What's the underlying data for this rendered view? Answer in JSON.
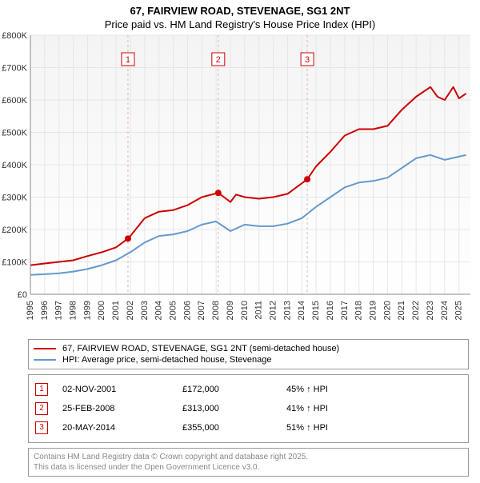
{
  "title_line1": "67, FAIRVIEW ROAD, STEVENAGE, SG1 2NT",
  "title_line2": "Price paid vs. HM Land Registry's House Price Index (HPI)",
  "chart": {
    "type": "line",
    "background_color": "#ffffff",
    "plot_background": "linear-gradient(#f7f7f7,#ffffff)",
    "xlim": [
      1995,
      2025.8
    ],
    "ylim": [
      0,
      800000
    ],
    "ytick_step": 100000,
    "yticks": [
      "£0",
      "£100K",
      "£200K",
      "£300K",
      "£400K",
      "£500K",
      "£600K",
      "£700K",
      "£800K"
    ],
    "xticks": [
      1995,
      1996,
      1997,
      1998,
      1999,
      2000,
      2001,
      2002,
      2003,
      2004,
      2005,
      2006,
      2007,
      2008,
      2009,
      2010,
      2011,
      2012,
      2013,
      2014,
      2015,
      2016,
      2017,
      2018,
      2019,
      2020,
      2021,
      2022,
      2023,
      2024,
      2025
    ],
    "grid_color": "#e6e6e6",
    "axis_color": "#888888",
    "axis_fontsize": 11,
    "series": [
      {
        "name": "67, FAIRVIEW ROAD, STEVENAGE, SG1 2NT (semi-detached house)",
        "color": "#cc0000",
        "line_width": 2,
        "data": [
          [
            1995,
            90000
          ],
          [
            1996,
            95000
          ],
          [
            1997,
            100000
          ],
          [
            1998,
            105000
          ],
          [
            1999,
            118000
          ],
          [
            2000,
            130000
          ],
          [
            2001,
            145000
          ],
          [
            2001.83,
            172000
          ],
          [
            2002,
            180000
          ],
          [
            2003,
            235000
          ],
          [
            2004,
            255000
          ],
          [
            2005,
            260000
          ],
          [
            2006,
            275000
          ],
          [
            2007,
            300000
          ],
          [
            2008.15,
            313000
          ],
          [
            2008.7,
            295000
          ],
          [
            2009,
            285000
          ],
          [
            2009.4,
            308000
          ],
          [
            2010,
            300000
          ],
          [
            2011,
            295000
          ],
          [
            2012,
            300000
          ],
          [
            2013,
            310000
          ],
          [
            2014.38,
            355000
          ],
          [
            2015,
            395000
          ],
          [
            2016,
            440000
          ],
          [
            2017,
            490000
          ],
          [
            2018,
            510000
          ],
          [
            2019,
            510000
          ],
          [
            2020,
            520000
          ],
          [
            2021,
            570000
          ],
          [
            2022,
            610000
          ],
          [
            2023,
            640000
          ],
          [
            2023.5,
            610000
          ],
          [
            2024,
            600000
          ],
          [
            2024.6,
            640000
          ],
          [
            2025,
            605000
          ],
          [
            2025.5,
            620000
          ]
        ]
      },
      {
        "name": "HPI: Average price, semi-detached house, Stevenage",
        "color": "#6699cc",
        "line_width": 2,
        "data": [
          [
            1995,
            60000
          ],
          [
            1996,
            62000
          ],
          [
            1997,
            65000
          ],
          [
            1998,
            70000
          ],
          [
            1999,
            78000
          ],
          [
            2000,
            90000
          ],
          [
            2001,
            105000
          ],
          [
            2002,
            130000
          ],
          [
            2003,
            160000
          ],
          [
            2004,
            180000
          ],
          [
            2005,
            185000
          ],
          [
            2006,
            195000
          ],
          [
            2007,
            215000
          ],
          [
            2008,
            225000
          ],
          [
            2009,
            195000
          ],
          [
            2010,
            215000
          ],
          [
            2011,
            210000
          ],
          [
            2012,
            210000
          ],
          [
            2013,
            218000
          ],
          [
            2014,
            235000
          ],
          [
            2015,
            270000
          ],
          [
            2016,
            300000
          ],
          [
            2017,
            330000
          ],
          [
            2018,
            345000
          ],
          [
            2019,
            350000
          ],
          [
            2020,
            360000
          ],
          [
            2021,
            390000
          ],
          [
            2022,
            420000
          ],
          [
            2023,
            430000
          ],
          [
            2024,
            415000
          ],
          [
            2025,
            425000
          ],
          [
            2025.5,
            430000
          ]
        ]
      }
    ],
    "sale_markers": [
      {
        "n": "1",
        "year": 2001.83,
        "price": 172000
      },
      {
        "n": "2",
        "year": 2008.15,
        "price": 313000
      },
      {
        "n": "3",
        "year": 2014.38,
        "price": 355000
      }
    ],
    "sale_marker_line_color": "#e6b3b3",
    "sale_marker_dot_color": "#cc0000",
    "sale_marker_badge_border": "#cc0000",
    "sale_marker_badge_text": "#cc0000"
  },
  "legend": {
    "items": [
      {
        "color": "#cc0000",
        "label": "67, FAIRVIEW ROAD, STEVENAGE, SG1 2NT (semi-detached house)"
      },
      {
        "color": "#6699cc",
        "label": "HPI: Average price, semi-detached house, Stevenage"
      }
    ]
  },
  "markers_table": [
    {
      "n": "1",
      "date": "02-NOV-2001",
      "price": "£172,000",
      "pct": "45% ↑ HPI"
    },
    {
      "n": "2",
      "date": "25-FEB-2008",
      "price": "£313,000",
      "pct": "41% ↑ HPI"
    },
    {
      "n": "3",
      "date": "20-MAY-2014",
      "price": "£355,000",
      "pct": "51% ↑ HPI"
    }
  ],
  "license": {
    "line1": "Contains HM Land Registry data © Crown copyright and database right 2025.",
    "line2": "This data is licensed under the Open Government Licence v3.0."
  }
}
